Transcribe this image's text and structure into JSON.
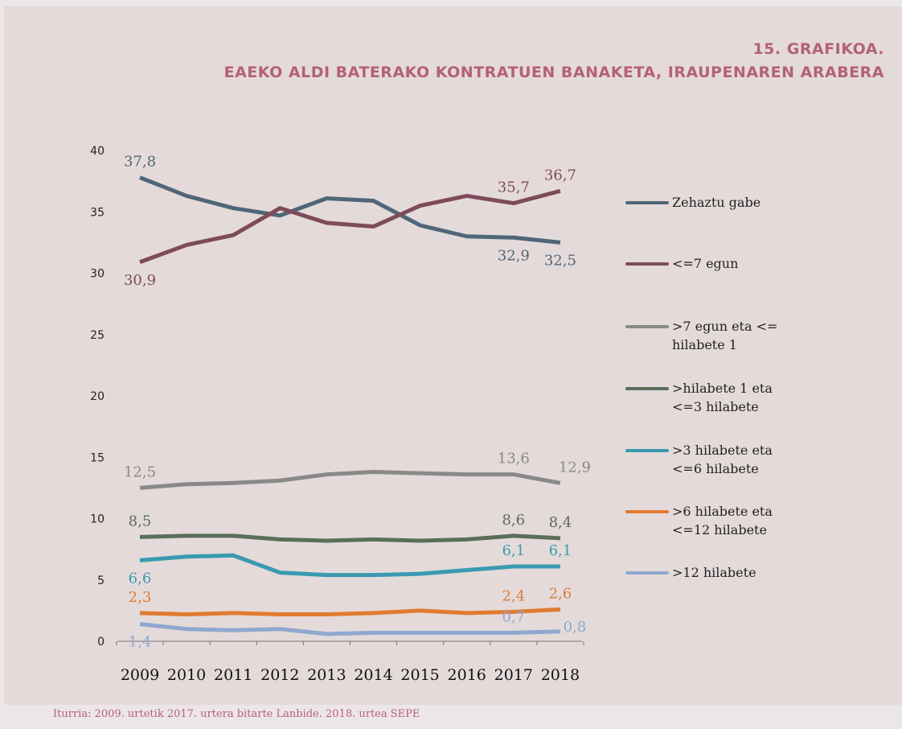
{
  "chart_data": {
    "type": "line",
    "title_label": "15. GRAFIKOA.",
    "title": "EAEKO ALDI BATERAKO KONTRATUEN BANAKETA, IRAUPENAREN ARABERA",
    "source": "Iturria: 2009. urtetik 2017. urtera bitarte Lanbide. 2018. urtea SEPE",
    "categories": [
      "2009",
      "2010",
      "2011",
      "2012",
      "2013",
      "2014",
      "2015",
      "2016",
      "2017",
      "2018"
    ],
    "ylim": [
      0,
      40
    ],
    "yticks": [
      0,
      5,
      10,
      15,
      20,
      25,
      30,
      35,
      40
    ],
    "legend": "right",
    "series": [
      {
        "name": "Zehaztu gabe",
        "color": "#4f6677",
        "values": [
          37.8,
          36.3,
          35.3,
          34.7,
          36.1,
          35.9,
          33.9,
          33.0,
          32.9,
          32.5
        ],
        "value_labels": [
          "37,8",
          null,
          null,
          null,
          null,
          null,
          null,
          null,
          "32,9",
          "32,5"
        ]
      },
      {
        "name": "<=7 egun",
        "color": "#7e4b5b",
        "values": [
          30.9,
          32.3,
          33.1,
          35.3,
          34.1,
          33.8,
          35.5,
          36.3,
          35.7,
          36.7
        ],
        "value_labels": [
          "30,9",
          null,
          null,
          null,
          null,
          null,
          null,
          null,
          "35,7",
          "36,7"
        ]
      },
      {
        "name": ">7 egun eta <= hilabete 1",
        "color": "#8a8888",
        "values": [
          12.5,
          12.8,
          12.9,
          13.1,
          13.6,
          13.8,
          13.7,
          13.6,
          13.6,
          12.9
        ],
        "value_labels": [
          "12,5",
          null,
          null,
          null,
          null,
          null,
          null,
          null,
          "13,6",
          "12,9"
        ]
      },
      {
        "name": ">hilabete 1 eta <=3 hilabete",
        "color": "#5a6e5a",
        "values": [
          8.5,
          8.6,
          8.6,
          8.3,
          8.2,
          8.3,
          8.2,
          8.3,
          8.6,
          8.4
        ],
        "value_labels": [
          "8,5",
          null,
          null,
          null,
          null,
          null,
          null,
          null,
          "8,6",
          "8,4"
        ]
      },
      {
        "name": ">3 hilabete eta <=6 hilabete",
        "color": "#3a9ab0",
        "values": [
          6.6,
          6.9,
          7.0,
          5.6,
          5.4,
          5.4,
          5.5,
          5.8,
          6.1,
          6.1
        ],
        "value_labels": [
          "6,6",
          null,
          null,
          null,
          null,
          null,
          null,
          null,
          "6,1",
          "6,1"
        ]
      },
      {
        "name": ">6 hilabete eta <=12 hilabete",
        "color": "#e07b30",
        "values": [
          2.3,
          2.2,
          2.3,
          2.2,
          2.2,
          2.3,
          2.5,
          2.3,
          2.4,
          2.6
        ],
        "value_labels": [
          "2,3",
          null,
          null,
          null,
          null,
          null,
          null,
          null,
          "2,4",
          "2,6"
        ]
      },
      {
        "name": ">12 hilabete",
        "color": "#8fa8d0",
        "values": [
          1.4,
          1.0,
          0.9,
          1.0,
          0.6,
          0.7,
          0.7,
          0.7,
          0.7,
          0.8
        ],
        "value_labels": [
          "1,4",
          null,
          null,
          null,
          null,
          null,
          null,
          null,
          "0,7",
          "0,8"
        ]
      }
    ]
  }
}
